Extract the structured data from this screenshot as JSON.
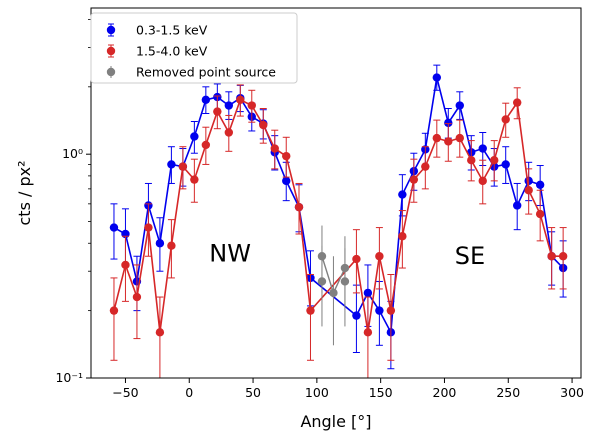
{
  "chart_data": {
    "type": "scatter",
    "xlabel": "Angle [°]",
    "ylabel": "cts / px²",
    "yscale": "log",
    "xlim": [
      -77,
      307
    ],
    "ylim": [
      0.1,
      4.5
    ],
    "x_ticks": [
      -50,
      0,
      50,
      100,
      150,
      200,
      250,
      300
    ],
    "x_tick_labels": [
      "−50",
      "0",
      "50",
      "100",
      "150",
      "200",
      "250",
      "300"
    ],
    "y_ticks": [
      0.1,
      1.0
    ],
    "y_tick_labels": [
      "10⁻¹",
      "10⁰"
    ],
    "grid": false,
    "legend_position": "top-left",
    "annotations": [
      {
        "text": "NW",
        "x": 32,
        "y": 0.36
      },
      {
        "text": "SE",
        "x": 220,
        "y": 0.35
      }
    ],
    "series": [
      {
        "name": "0.3-1.5 keV",
        "color": "#0000ee",
        "points": [
          {
            "x": -59,
            "y": 0.47,
            "lo": 0.34,
            "hi": 0.6
          },
          {
            "x": -50,
            "y": 0.44,
            "lo": 0.32,
            "hi": 0.57
          },
          {
            "x": -41,
            "y": 0.27,
            "lo": 0.2,
            "hi": 0.35
          },
          {
            "x": -32,
            "y": 0.59,
            "lo": 0.46,
            "hi": 0.74
          },
          {
            "x": -23,
            "y": 0.4,
            "lo": 0.3,
            "hi": 0.52
          },
          {
            "x": -14,
            "y": 0.9,
            "lo": 0.74,
            "hi": 1.08
          },
          {
            "x": -5,
            "y": 0.88,
            "lo": 0.72,
            "hi": 1.06
          },
          {
            "x": 4,
            "y": 1.2,
            "lo": 1.01,
            "hi": 1.4
          },
          {
            "x": 13,
            "y": 1.75,
            "lo": 1.52,
            "hi": 2.0
          },
          {
            "x": 22,
            "y": 1.8,
            "lo": 1.56,
            "hi": 2.06
          },
          {
            "x": 31,
            "y": 1.65,
            "lo": 1.43,
            "hi": 1.9
          },
          {
            "x": 40,
            "y": 1.78,
            "lo": 1.55,
            "hi": 2.03
          },
          {
            "x": 49,
            "y": 1.47,
            "lo": 1.27,
            "hi": 1.69
          },
          {
            "x": 58,
            "y": 1.37,
            "lo": 1.17,
            "hi": 1.58
          },
          {
            "x": 67,
            "y": 1.02,
            "lo": 0.85,
            "hi": 1.21
          },
          {
            "x": 76,
            "y": 0.76,
            "lo": 0.62,
            "hi": 0.92
          },
          {
            "x": 86,
            "y": 0.58,
            "lo": 0.45,
            "hi": 0.73
          },
          {
            "x": 95,
            "y": 0.28,
            "lo": 0.21,
            "hi": 0.37
          },
          {
            "x": 131,
            "y": 0.19,
            "lo": 0.13,
            "hi": 0.26
          },
          {
            "x": 140,
            "y": 0.24,
            "lo": 0.17,
            "hi": 0.32
          },
          {
            "x": 149,
            "y": 0.2,
            "lo": 0.14,
            "hi": 0.27
          },
          {
            "x": 158,
            "y": 0.16,
            "lo": 0.11,
            "hi": 0.22
          },
          {
            "x": 167,
            "y": 0.66,
            "lo": 0.53,
            "hi": 0.81
          },
          {
            "x": 176,
            "y": 0.84,
            "lo": 0.69,
            "hi": 1.01
          },
          {
            "x": 185,
            "y": 1.05,
            "lo": 0.88,
            "hi": 1.24
          },
          {
            "x": 194,
            "y": 2.2,
            "lo": 1.93,
            "hi": 2.5
          },
          {
            "x": 203,
            "y": 1.38,
            "lo": 1.18,
            "hi": 1.6
          },
          {
            "x": 212,
            "y": 1.65,
            "lo": 1.43,
            "hi": 1.9
          },
          {
            "x": 221,
            "y": 1.02,
            "lo": 0.85,
            "hi": 1.21
          },
          {
            "x": 230,
            "y": 1.06,
            "lo": 0.89,
            "hi": 1.25
          },
          {
            "x": 239,
            "y": 0.88,
            "lo": 0.72,
            "hi": 1.06
          },
          {
            "x": 248,
            "y": 0.9,
            "lo": 0.74,
            "hi": 1.08
          },
          {
            "x": 257,
            "y": 0.59,
            "lo": 0.46,
            "hi": 0.74
          },
          {
            "x": 266,
            "y": 0.76,
            "lo": 0.62,
            "hi": 0.92
          },
          {
            "x": 275,
            "y": 0.73,
            "lo": 0.59,
            "hi": 0.89
          },
          {
            "x": 284,
            "y": 0.35,
            "lo": 0.26,
            "hi": 0.45
          },
          {
            "x": 293,
            "y": 0.31,
            "lo": 0.23,
            "hi": 0.41
          }
        ]
      },
      {
        "name": "1.5-4.0 keV",
        "color": "#d62728",
        "points": [
          {
            "x": -59,
            "y": 0.2,
            "lo": 0.12,
            "hi": 0.28
          },
          {
            "x": -50,
            "y": 0.32,
            "lo": 0.22,
            "hi": 0.43
          },
          {
            "x": -41,
            "y": 0.23,
            "lo": 0.15,
            "hi": 0.32
          },
          {
            "x": -32,
            "y": 0.47,
            "lo": 0.35,
            "hi": 0.6
          },
          {
            "x": -23,
            "y": 0.16,
            "lo": 0.1,
            "hi": 0.23
          },
          {
            "x": -14,
            "y": 0.39,
            "lo": 0.28,
            "hi": 0.51
          },
          {
            "x": -5,
            "y": 0.88,
            "lo": 0.7,
            "hi": 1.08
          },
          {
            "x": 4,
            "y": 0.77,
            "lo": 0.61,
            "hi": 0.95
          },
          {
            "x": 13,
            "y": 1.1,
            "lo": 0.9,
            "hi": 1.32
          },
          {
            "x": 22,
            "y": 1.55,
            "lo": 1.3,
            "hi": 1.82
          },
          {
            "x": 31,
            "y": 1.25,
            "lo": 1.03,
            "hi": 1.49
          },
          {
            "x": 40,
            "y": 1.75,
            "lo": 1.48,
            "hi": 2.04
          },
          {
            "x": 49,
            "y": 1.65,
            "lo": 1.39,
            "hi": 1.93
          },
          {
            "x": 58,
            "y": 1.35,
            "lo": 1.12,
            "hi": 1.6
          },
          {
            "x": 67,
            "y": 1.06,
            "lo": 0.86,
            "hi": 1.28
          },
          {
            "x": 76,
            "y": 0.98,
            "lo": 0.79,
            "hi": 1.19
          },
          {
            "x": 86,
            "y": 0.58,
            "lo": 0.44,
            "hi": 0.74
          },
          {
            "x": 95,
            "y": 0.2,
            "lo": 0.12,
            "hi": 0.29
          },
          {
            "x": 131,
            "y": 0.34,
            "lo": 0.24,
            "hi": 0.46
          },
          {
            "x": 140,
            "y": 0.16,
            "lo": 0.1,
            "hi": 0.23
          },
          {
            "x": 149,
            "y": 0.35,
            "lo": 0.25,
            "hi": 0.47
          },
          {
            "x": 158,
            "y": 0.2,
            "lo": 0.12,
            "hi": 0.29
          },
          {
            "x": 167,
            "y": 0.43,
            "lo": 0.31,
            "hi": 0.56
          },
          {
            "x": 176,
            "y": 0.77,
            "lo": 0.61,
            "hi": 0.95
          },
          {
            "x": 185,
            "y": 0.88,
            "lo": 0.7,
            "hi": 1.08
          },
          {
            "x": 194,
            "y": 1.18,
            "lo": 0.97,
            "hi": 1.42
          },
          {
            "x": 203,
            "y": 1.14,
            "lo": 0.93,
            "hi": 1.37
          },
          {
            "x": 212,
            "y": 1.18,
            "lo": 0.97,
            "hi": 1.42
          },
          {
            "x": 221,
            "y": 0.94,
            "lo": 0.76,
            "hi": 1.15
          },
          {
            "x": 230,
            "y": 0.76,
            "lo": 0.6,
            "hi": 0.94
          },
          {
            "x": 239,
            "y": 0.94,
            "lo": 0.76,
            "hi": 1.15
          },
          {
            "x": 248,
            "y": 1.43,
            "lo": 1.19,
            "hi": 1.69
          },
          {
            "x": 257,
            "y": 1.7,
            "lo": 1.44,
            "hi": 1.98
          },
          {
            "x": 266,
            "y": 0.69,
            "lo": 0.54,
            "hi": 0.86
          },
          {
            "x": 275,
            "y": 0.54,
            "lo": 0.41,
            "hi": 0.69
          },
          {
            "x": 284,
            "y": 0.35,
            "lo": 0.25,
            "hi": 0.47
          },
          {
            "x": 293,
            "y": 0.35,
            "lo": 0.25,
            "hi": 0.47
          }
        ]
      },
      {
        "name": "Removed point source",
        "color": "#808080",
        "points": [
          {
            "x": 104,
            "y": 0.35,
            "lo": 0.24,
            "hi": 0.48
          },
          {
            "x": 104,
            "y": 0.27,
            "lo": 0.17,
            "hi": 0.39
          },
          {
            "x": 113,
            "y": 0.24,
            "lo": 0.14,
            "hi": 0.35
          },
          {
            "x": 122,
            "y": 0.31,
            "lo": 0.21,
            "hi": 0.43
          },
          {
            "x": 122,
            "y": 0.27,
            "lo": 0.17,
            "hi": 0.38
          }
        ]
      }
    ]
  }
}
